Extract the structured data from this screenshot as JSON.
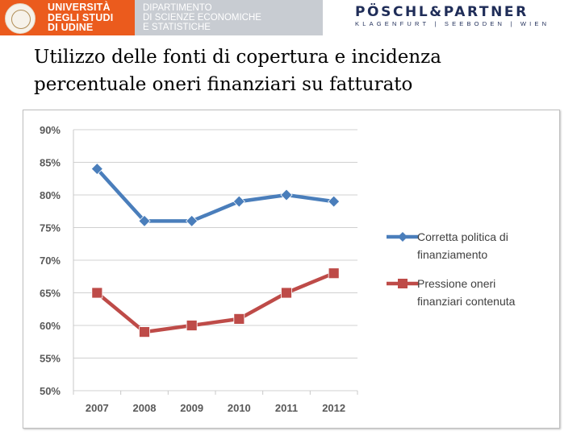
{
  "header": {
    "university": [
      "UNIVERSITÀ",
      "DEGLI STUDI",
      "DI UDINE"
    ],
    "department": [
      "DIPARTIMENTO",
      "DI SCIENZE ECONOMICHE",
      "E STATISTICHE"
    ],
    "partner_name": "PÖSCHL&PARTNER",
    "partner_locations": "KLAGENFURT | SEEBODEN | WIEN",
    "university_color": "#eb5b1d",
    "department_color": "#c8ccd2",
    "partner_color": "#1f2d58"
  },
  "title": {
    "line1": "Utilizzo delle fonti di copertura e incidenza",
    "line2": "percentuale oneri finanziari su fatturato"
  },
  "chart_data": {
    "type": "line",
    "title": "",
    "xlabel": "",
    "ylabel": "",
    "categories": [
      "2007",
      "2008",
      "2009",
      "2010",
      "2011",
      "2012"
    ],
    "ylim": [
      50,
      90
    ],
    "yticks": [
      50,
      55,
      60,
      65,
      70,
      75,
      80,
      85,
      90
    ],
    "ytick_labels": [
      "50%",
      "55%",
      "60%",
      "65%",
      "70%",
      "75%",
      "80%",
      "85%",
      "90%"
    ],
    "grid": true,
    "legend_position": "right",
    "series": [
      {
        "name_lines": [
          "Corretta politica di",
          "finanziamento"
        ],
        "values": [
          84,
          76,
          76,
          79,
          80,
          79
        ],
        "color": "#4a7ebb",
        "marker": "diamond"
      },
      {
        "name_lines": [
          "Pressione oneri",
          "finanziari contenuta"
        ],
        "values": [
          65,
          59,
          60,
          61,
          65,
          68
        ],
        "color": "#be4b48",
        "marker": "square"
      }
    ]
  }
}
